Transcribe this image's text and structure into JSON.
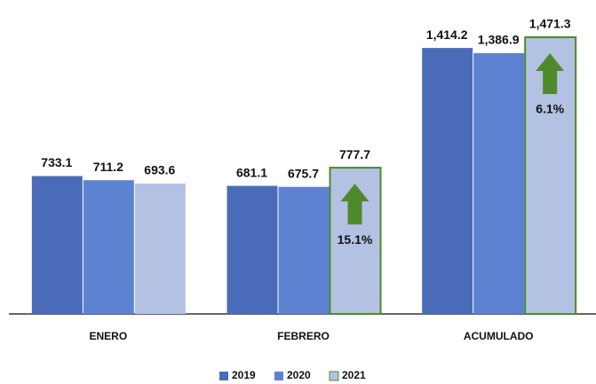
{
  "chart_data": {
    "type": "bar",
    "categories": [
      "ENERO",
      "FEBRERO",
      "ACUMULADO"
    ],
    "series": [
      {
        "name": "2019",
        "color": "#4a6cb8",
        "values": [
          733.1,
          681.1,
          1414.2
        ],
        "value_labels": [
          "733.1",
          "681.1",
          "1,414.2"
        ]
      },
      {
        "name": "2020",
        "color": "#5d82d2",
        "values": [
          711.2,
          675.7,
          1386.9
        ],
        "value_labels": [
          "711.2",
          "675.7",
          "1,386.9"
        ]
      },
      {
        "name": "2021",
        "color": "#b3c2e2",
        "values": [
          693.6,
          777.7,
          1471.3
        ],
        "value_labels": [
          "693.6",
          "777.7",
          "1,471.3"
        ]
      }
    ],
    "annotations": [
      {
        "text": "15.1%",
        "category": "FEBRERO",
        "series": "2021"
      },
      {
        "text": "6.1%",
        "category": "ACUMULADO",
        "series": "2021"
      }
    ],
    "highlight_color": "#4e8a2c",
    "legend": "bottom"
  }
}
